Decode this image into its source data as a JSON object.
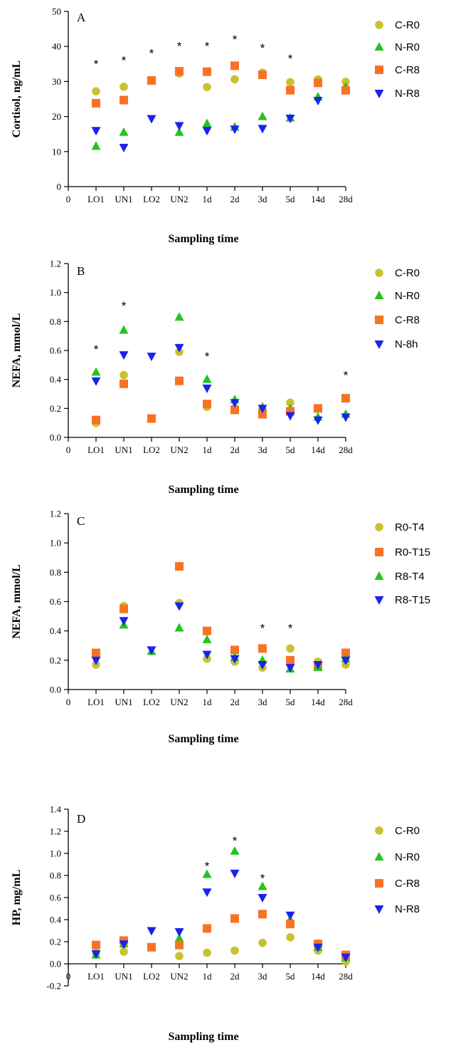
{
  "figure": {
    "categories": [
      "0",
      "LO1",
      "UN1",
      "LO2",
      "UN2",
      "1d",
      "2d",
      "3d",
      "5d",
      "14d",
      "28d"
    ],
    "colors": {
      "circle": "#c8c230",
      "triangle_up": "#22c51e",
      "square": "#f97224",
      "triangle_down": "#1a22f0",
      "axis": "#000000"
    }
  },
  "chart_data": [
    {
      "type": "scatter",
      "panel": "A",
      "ylabel": "Cortisol, ng/mL",
      "xlabel": "Sampling time",
      "ylim": [
        0,
        50
      ],
      "yticks": [
        0,
        10,
        20,
        30,
        40,
        50
      ],
      "grid": false,
      "legend_placement": "right",
      "series": [
        {
          "name": "C-R0",
          "marker": "circle",
          "values": [
            null,
            27.2,
            28.5,
            30.2,
            32.3,
            28.4,
            30.6,
            32.5,
            29.8,
            30.6,
            29.9
          ]
        },
        {
          "name": "N-R0",
          "marker": "triangle_up",
          "values": [
            null,
            11.5,
            15.5,
            null,
            15.5,
            18.0,
            17.0,
            20.0,
            19.6,
            25.6,
            28.5
          ]
        },
        {
          "name": "C-R8",
          "marker": "square",
          "values": [
            null,
            23.8,
            24.7,
            30.3,
            32.9,
            32.8,
            34.5,
            31.9,
            27.5,
            29.6,
            27.5
          ]
        },
        {
          "name": "N-R8",
          "marker": "triangle_down",
          "values": [
            null,
            16.0,
            11.2,
            19.4,
            17.4,
            16.0,
            16.4,
            16.6,
            19.5,
            24.6,
            null
          ]
        }
      ],
      "annotations": [
        {
          "category": "LO1",
          "text": "*",
          "y": 35.5
        },
        {
          "category": "UN1",
          "text": "*",
          "y": 36.5
        },
        {
          "category": "LO2",
          "text": "*",
          "y": 38.5
        },
        {
          "category": "UN2",
          "text": "*",
          "y": 40.5
        },
        {
          "category": "1d",
          "text": "*",
          "y": 40.5
        },
        {
          "category": "2d",
          "text": "*",
          "y": 42.5
        },
        {
          "category": "3d",
          "text": "*",
          "y": 40.0
        },
        {
          "category": "5d",
          "text": "*",
          "y": 37.0
        }
      ]
    },
    {
      "type": "scatter",
      "panel": "B",
      "ylabel": "NEFA, mmol/L",
      "xlabel": "Sampling time",
      "ylim": [
        0,
        1.2
      ],
      "yticks": [
        "0.0",
        "0.2",
        "0.4",
        "0.6",
        "0.8",
        "1.0",
        "1.2"
      ],
      "grid": false,
      "legend_placement": "right",
      "series": [
        {
          "name": "C-R0",
          "marker": "circle",
          "values": [
            null,
            0.1,
            0.43,
            null,
            0.59,
            0.21,
            0.2,
            0.19,
            0.24,
            0.2,
            0.27
          ]
        },
        {
          "name": "N-R0",
          "marker": "triangle_up",
          "values": [
            null,
            0.45,
            0.74,
            null,
            0.83,
            0.4,
            0.26,
            0.21,
            0.2,
            0.14,
            0.16
          ]
        },
        {
          "name": "C-R8",
          "marker": "square",
          "values": [
            null,
            0.12,
            0.37,
            0.13,
            0.39,
            0.23,
            0.19,
            0.16,
            0.18,
            0.2,
            0.27
          ]
        },
        {
          "name": "N-8h",
          "marker": "triangle_down",
          "values": [
            null,
            0.39,
            0.57,
            0.56,
            0.62,
            0.34,
            0.24,
            0.2,
            0.15,
            0.12,
            0.14
          ]
        }
      ],
      "annotations": [
        {
          "category": "LO1",
          "text": "*",
          "y": 0.62
        },
        {
          "category": "UN1",
          "text": "*",
          "y": 0.92
        },
        {
          "category": "1d",
          "text": "*",
          "y": 0.57
        },
        {
          "category": "28d",
          "text": "*",
          "y": 0.44
        }
      ]
    },
    {
      "type": "scatter",
      "panel": "C",
      "ylabel": "NEFA, mmol/L",
      "xlabel": "Sampling time",
      "ylim": [
        0,
        1.2
      ],
      "yticks": [
        "0.0",
        "0.2",
        "0.4",
        "0.6",
        "0.8",
        "1.0",
        "1.2"
      ],
      "grid": false,
      "legend_placement": "right",
      "series": [
        {
          "name": "R0-T4",
          "marker": "circle",
          "values": [
            null,
            0.17,
            0.57,
            null,
            0.59,
            0.21,
            0.19,
            0.15,
            0.28,
            0.19,
            0.17
          ]
        },
        {
          "name": "R0-T15",
          "marker": "square",
          "values": [
            null,
            0.25,
            0.55,
            null,
            0.84,
            0.4,
            0.27,
            0.28,
            0.2,
            0.16,
            0.25
          ]
        },
        {
          "name": "R8-T4",
          "marker": "triangle_up",
          "values": [
            null,
            null,
            0.44,
            0.26,
            0.42,
            0.34,
            0.22,
            0.2,
            0.14,
            0.15,
            0.21
          ]
        },
        {
          "name": "R8-T15",
          "marker": "triangle_down",
          "values": [
            null,
            0.2,
            0.47,
            0.27,
            0.57,
            0.24,
            0.21,
            0.17,
            0.15,
            0.17,
            0.2
          ]
        }
      ],
      "annotations": [
        {
          "category": "3d",
          "text": "*",
          "y": 0.43
        },
        {
          "category": "5d",
          "text": "*",
          "y": 0.43
        }
      ]
    },
    {
      "type": "scatter",
      "panel": "D",
      "ylabel": "HP, mg/mL",
      "xlabel": "Sampling time",
      "ylim": [
        -0.2,
        1.4
      ],
      "yticks": [
        "-0.2",
        "0.0",
        "0.2",
        "0.4",
        "0.6",
        "0.8",
        "1.0",
        "1.2",
        "1.4"
      ],
      "grid": false,
      "legend_placement": "right",
      "series": [
        {
          "name": "C-R0",
          "marker": "circle",
          "values": [
            null,
            0.1,
            0.11,
            null,
            0.07,
            0.1,
            0.12,
            0.19,
            0.24,
            0.12,
            0.02
          ]
        },
        {
          "name": "N-R0",
          "marker": "triangle_up",
          "values": [
            null,
            0.08,
            0.18,
            null,
            0.23,
            0.81,
            1.02,
            0.7,
            0.4,
            0.15,
            0.06
          ]
        },
        {
          "name": "C-R8",
          "marker": "square",
          "values": [
            null,
            0.17,
            0.21,
            0.15,
            0.17,
            0.32,
            0.41,
            0.45,
            0.36,
            0.18,
            0.08
          ]
        },
        {
          "name": "N-R8",
          "marker": "triangle_down",
          "values": [
            null,
            0.09,
            0.18,
            0.3,
            0.29,
            0.65,
            0.82,
            0.6,
            0.44,
            0.15,
            0.06
          ]
        }
      ],
      "annotations": [
        {
          "category": "1d",
          "text": "*",
          "y": 0.9
        },
        {
          "category": "2d",
          "text": "*",
          "y": 1.13
        },
        {
          "category": "3d",
          "text": "*",
          "y": 0.79
        }
      ]
    }
  ]
}
